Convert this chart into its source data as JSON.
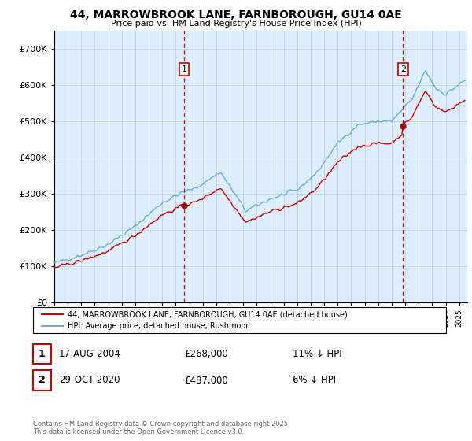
{
  "title": "44, MARROWBROOK LANE, FARNBOROUGH, GU14 0AE",
  "subtitle": "Price paid vs. HM Land Registry's House Price Index (HPI)",
  "ylim": [
    0,
    750000
  ],
  "yticks": [
    0,
    100000,
    200000,
    300000,
    400000,
    500000,
    600000,
    700000
  ],
  "hpi_color": "#6baed6",
  "price_color": "#cc0000",
  "vline_color": "#cc0000",
  "bg_color": "#ffffff",
  "plot_bg_color": "#ddeeff",
  "grid_color": "#bbccdd",
  "t1_year": 2004.625,
  "t2_year": 2020.833,
  "price1": 268000,
  "price2": 487000,
  "transaction1_date": "17-AUG-2004",
  "transaction1_note": "11% ↓ HPI",
  "transaction2_date": "29-OCT-2020",
  "transaction2_note": "6% ↓ HPI",
  "footer": "Contains HM Land Registry data © Crown copyright and database right 2025.\nThis data is licensed under the Open Government Licence v3.0.",
  "legend1": "44, MARROWBROOK LANE, FARNBOROUGH, GU14 0AE (detached house)",
  "legend2": "HPI: Average price, detached house, Rushmoor"
}
